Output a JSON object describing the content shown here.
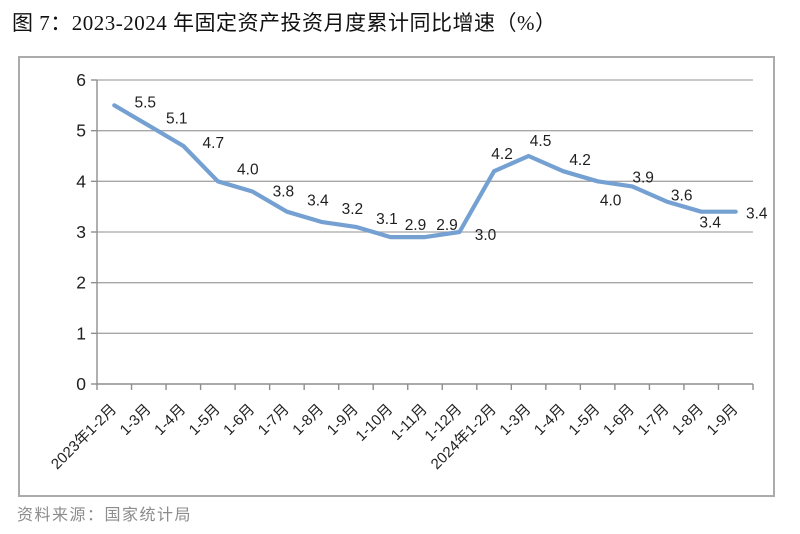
{
  "page": {
    "title": "图 7：2023-2024 年固定资产投资月度累计同比增速（%）",
    "source": "资料来源：国家统计局"
  },
  "chart_data": {
    "type": "line",
    "title": "2023-2024 年固定资产投资月度累计同比增速（%）",
    "categories": [
      "2023年1-2月",
      "1-3月",
      "1-4月",
      "1-5月",
      "1-6月",
      "1-7月",
      "1-8月",
      "1-9月",
      "1-10月",
      "1-11月",
      "1-12月",
      "2024年1-2月",
      "1-3月",
      "1-4月",
      "1-5月",
      "1-6月",
      "1-7月",
      "1-8月",
      "1-9月"
    ],
    "values": [
      5.5,
      5.1,
      4.7,
      4.0,
      3.8,
      3.4,
      3.2,
      3.1,
      2.9,
      2.9,
      3.0,
      4.2,
      4.5,
      4.2,
      4.0,
      3.9,
      3.6,
      3.4,
      3.4
    ],
    "data_labels": [
      "5.5",
      "5.1",
      "4.7",
      "4.0",
      "3.8",
      "3.4",
      "3.2",
      "3.1",
      "2.9",
      "2.9",
      "3.0",
      "4.2",
      "4.5",
      "4.2",
      "4.0",
      "3.9",
      "3.6",
      "3.4",
      "3.4"
    ],
    "xlabel": "",
    "ylabel": "",
    "ylim": [
      0,
      6
    ],
    "yticks": [
      0,
      1,
      2,
      3,
      4,
      5,
      6
    ],
    "grid": true,
    "legend": false,
    "colors": {
      "line": "#74a0d2",
      "gridline": "#a6a6a6",
      "axis": "#8e8e8e",
      "tick_label": "#1f1f1f",
      "data_label": "#1f1f1f"
    }
  }
}
